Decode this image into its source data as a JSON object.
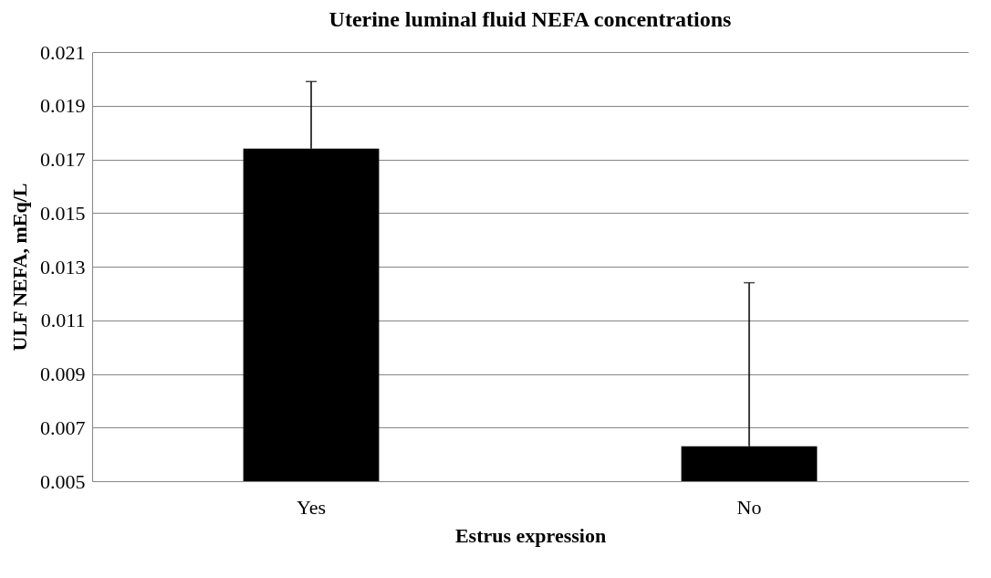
{
  "chart_data": {
    "type": "bar",
    "title": "Uterine luminal fluid NEFA concentrations",
    "xlabel": "Estrus expression",
    "ylabel": "ULF NEFA, mEq/L",
    "categories": [
      "Yes",
      "No"
    ],
    "values": [
      0.0174,
      0.0063
    ],
    "errors": [
      [
        0.0174,
        0.0199
      ],
      [
        0.0063,
        0.0124
      ]
    ],
    "color": "#000000",
    "ylim": [
      0.005,
      0.021
    ],
    "yticks": [
      0.005,
      0.007,
      0.009,
      0.011,
      0.013,
      0.015,
      0.017,
      0.019,
      0.021
    ],
    "grid": "y"
  }
}
